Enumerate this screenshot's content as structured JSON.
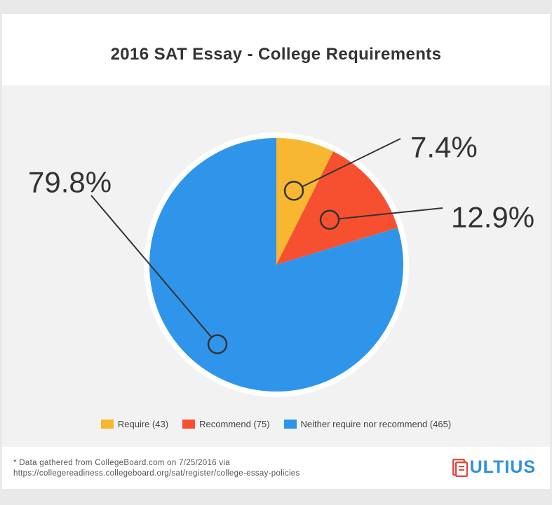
{
  "title": "2016 SAT Essay - College Requirements",
  "chart_data": {
    "type": "pie",
    "title": "2016 SAT Essay - College Requirements",
    "slices": [
      {
        "name": "Require",
        "count": 43,
        "percent": 7.4,
        "label": "7.4%",
        "color": "#f7b731"
      },
      {
        "name": "Recommend",
        "count": 75,
        "percent": 12.9,
        "label": "12.9%",
        "color": "#f75030"
      },
      {
        "name": "Neither require nor recommend",
        "count": 465,
        "percent": 79.8,
        "label": "79.8%",
        "color": "#2f95ea"
      }
    ],
    "legend_placement": "bottom"
  },
  "legend": [
    {
      "label": "Require (43)",
      "color": "#f7b731"
    },
    {
      "label": "Recommend (75)",
      "color": "#f75030"
    },
    {
      "label": "Neither require nor recommend (465)",
      "color": "#2f95ea"
    }
  ],
  "footer": {
    "note_line1": "* Data gathered from CollegeBoard.com on 7/25/2016 via",
    "note_line2": "https://collegereadiness.collegeboard.org/sat/register/college-essay-policies",
    "logo_text": "ULTIUS",
    "logo_color": "#2f8fe3",
    "logo_icon_color": "#e8463a"
  }
}
